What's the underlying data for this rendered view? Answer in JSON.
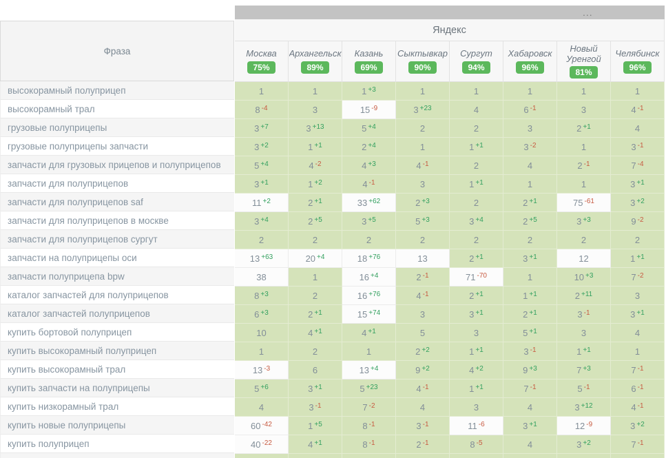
{
  "table": {
    "more_label": "...",
    "engine": "Яндекс",
    "phrase_header": "Фраза",
    "colors": {
      "badge_green": "#5cb85c",
      "cell_in_top": "#d5e3ba",
      "cell_out_of_top": "#fcfcfc",
      "diff_up": "#33a05f",
      "diff_down": "#c75a41"
    },
    "cities": [
      {
        "name": "Москва",
        "visibility": "75%"
      },
      {
        "name": "Архангельск",
        "visibility": "89%"
      },
      {
        "name": "Казань",
        "visibility": "69%"
      },
      {
        "name": "Сыктывкар",
        "visibility": "90%"
      },
      {
        "name": "Сургут",
        "visibility": "94%"
      },
      {
        "name": "Хабаровск",
        "visibility": "96%"
      },
      {
        "name": "Новый Уренгой",
        "visibility": "81%"
      },
      {
        "name": "Челябинск",
        "visibility": "96%"
      }
    ],
    "rows": [
      {
        "phrase": "высокорамный полуприцеп",
        "cells": [
          {
            "pos": 1
          },
          {
            "pos": 1
          },
          {
            "pos": 1,
            "diff": "+3"
          },
          {
            "pos": 1
          },
          {
            "pos": 1
          },
          {
            "pos": 1
          },
          {
            "pos": 1
          },
          {
            "pos": 1
          }
        ]
      },
      {
        "phrase": "высокорамный трал",
        "cells": [
          {
            "pos": 8,
            "diff": "-4"
          },
          {
            "pos": 3
          },
          {
            "pos": 15,
            "diff": "-9"
          },
          {
            "pos": 3,
            "diff": "+23"
          },
          {
            "pos": 4
          },
          {
            "pos": 6,
            "diff": "-1"
          },
          {
            "pos": 3
          },
          {
            "pos": 4,
            "diff": "-1"
          }
        ]
      },
      {
        "phrase": "грузовые полуприцепы",
        "cells": [
          {
            "pos": 3,
            "diff": "+7"
          },
          {
            "pos": 3,
            "diff": "+13"
          },
          {
            "pos": 5,
            "diff": "+4"
          },
          {
            "pos": 2
          },
          {
            "pos": 2
          },
          {
            "pos": 3
          },
          {
            "pos": 2,
            "diff": "+1"
          },
          {
            "pos": 4
          }
        ]
      },
      {
        "phrase": "грузовые полуприцепы запчасти",
        "cells": [
          {
            "pos": 3,
            "diff": "+2"
          },
          {
            "pos": 1,
            "diff": "+1"
          },
          {
            "pos": 2,
            "diff": "+4"
          },
          {
            "pos": 1
          },
          {
            "pos": 1,
            "diff": "+1"
          },
          {
            "pos": 3,
            "diff": "-2"
          },
          {
            "pos": 1
          },
          {
            "pos": 3,
            "diff": "-1"
          }
        ]
      },
      {
        "phrase": "запчасти для грузовых прицепов и полуприцепов",
        "cells": [
          {
            "pos": 5,
            "diff": "+4"
          },
          {
            "pos": 4,
            "diff": "-2"
          },
          {
            "pos": 4,
            "diff": "+3"
          },
          {
            "pos": 4,
            "diff": "-1"
          },
          {
            "pos": 2
          },
          {
            "pos": 4
          },
          {
            "pos": 2,
            "diff": "-1"
          },
          {
            "pos": 7,
            "diff": "-4"
          }
        ]
      },
      {
        "phrase": "запчасти для полуприцепов",
        "cells": [
          {
            "pos": 3,
            "diff": "+1"
          },
          {
            "pos": 1,
            "diff": "+2"
          },
          {
            "pos": 4,
            "diff": "-1"
          },
          {
            "pos": 3
          },
          {
            "pos": 1,
            "diff": "+1"
          },
          {
            "pos": 1
          },
          {
            "pos": 1
          },
          {
            "pos": 3,
            "diff": "+1"
          }
        ]
      },
      {
        "phrase": "запчасти для полуприцепов saf",
        "cells": [
          {
            "pos": 11,
            "diff": "+2"
          },
          {
            "pos": 2,
            "diff": "+1"
          },
          {
            "pos": 33,
            "diff": "+62"
          },
          {
            "pos": 2,
            "diff": "+3"
          },
          {
            "pos": 2
          },
          {
            "pos": 2,
            "diff": "+1"
          },
          {
            "pos": 75,
            "diff": "-61"
          },
          {
            "pos": 3,
            "diff": "+2"
          }
        ]
      },
      {
        "phrase": "запчасти для полуприцепов в москве",
        "cells": [
          {
            "pos": 3,
            "diff": "+4"
          },
          {
            "pos": 2,
            "diff": "+5"
          },
          {
            "pos": 3,
            "diff": "+5"
          },
          {
            "pos": 5,
            "diff": "+3"
          },
          {
            "pos": 3,
            "diff": "+4"
          },
          {
            "pos": 2,
            "diff": "+5"
          },
          {
            "pos": 3,
            "diff": "+3"
          },
          {
            "pos": 9,
            "diff": "-2"
          }
        ]
      },
      {
        "phrase": "запчасти для полуприцепов сургут",
        "cells": [
          {
            "pos": 2
          },
          {
            "pos": 2
          },
          {
            "pos": 2
          },
          {
            "pos": 2
          },
          {
            "pos": 2
          },
          {
            "pos": 2
          },
          {
            "pos": 2
          },
          {
            "pos": 2
          }
        ]
      },
      {
        "phrase": "запчасти на полуприцепы оси",
        "cells": [
          {
            "pos": 13,
            "diff": "+63"
          },
          {
            "pos": 20,
            "diff": "+4"
          },
          {
            "pos": 18,
            "diff": "+76"
          },
          {
            "pos": 13
          },
          {
            "pos": 2,
            "diff": "+1"
          },
          {
            "pos": 3,
            "diff": "+1"
          },
          {
            "pos": 12
          },
          {
            "pos": 1,
            "diff": "+1"
          }
        ]
      },
      {
        "phrase": "запчасти полуприцепа bpw",
        "cells": [
          {
            "pos": 38
          },
          {
            "pos": 1
          },
          {
            "pos": 16,
            "diff": "+4"
          },
          {
            "pos": 2,
            "diff": "-1"
          },
          {
            "pos": 71,
            "diff": "-70"
          },
          {
            "pos": 1
          },
          {
            "pos": 10,
            "diff": "+3"
          },
          {
            "pos": 7,
            "diff": "-2"
          }
        ]
      },
      {
        "phrase": "каталог запчастей для полуприцепов",
        "cells": [
          {
            "pos": 8,
            "diff": "+3"
          },
          {
            "pos": 2
          },
          {
            "pos": 16,
            "diff": "+76"
          },
          {
            "pos": 4,
            "diff": "-1"
          },
          {
            "pos": 2,
            "diff": "+1"
          },
          {
            "pos": 1,
            "diff": "+1"
          },
          {
            "pos": 2,
            "diff": "+11"
          },
          {
            "pos": 3
          }
        ]
      },
      {
        "phrase": "каталог запчастей полуприцепов",
        "cells": [
          {
            "pos": 6,
            "diff": "+3"
          },
          {
            "pos": 2,
            "diff": "+1"
          },
          {
            "pos": 15,
            "diff": "+74"
          },
          {
            "pos": 3
          },
          {
            "pos": 3,
            "diff": "+1"
          },
          {
            "pos": 2,
            "diff": "+1"
          },
          {
            "pos": 3,
            "diff": "-1"
          },
          {
            "pos": 3,
            "diff": "+1"
          }
        ]
      },
      {
        "phrase": "купить бортовой полуприцеп",
        "cells": [
          {
            "pos": 10
          },
          {
            "pos": 4,
            "diff": "+1"
          },
          {
            "pos": 4,
            "diff": "+1"
          },
          {
            "pos": 5
          },
          {
            "pos": 3
          },
          {
            "pos": 5,
            "diff": "+1"
          },
          {
            "pos": 3
          },
          {
            "pos": 4
          }
        ]
      },
      {
        "phrase": "купить высокорамный полуприцеп",
        "cells": [
          {
            "pos": 1
          },
          {
            "pos": 2
          },
          {
            "pos": 1
          },
          {
            "pos": 2,
            "diff": "+2"
          },
          {
            "pos": 1,
            "diff": "+1"
          },
          {
            "pos": 3,
            "diff": "-1"
          },
          {
            "pos": 1,
            "diff": "+1"
          },
          {
            "pos": 1
          }
        ]
      },
      {
        "phrase": "купить высокорамный трал",
        "cells": [
          {
            "pos": 13,
            "diff": "-3"
          },
          {
            "pos": 6
          },
          {
            "pos": 13,
            "diff": "+4"
          },
          {
            "pos": 9,
            "diff": "+2"
          },
          {
            "pos": 4,
            "diff": "+2"
          },
          {
            "pos": 9,
            "diff": "+3"
          },
          {
            "pos": 7,
            "diff": "+3"
          },
          {
            "pos": 7,
            "diff": "-1"
          }
        ]
      },
      {
        "phrase": "купить запчасти на полуприцепы",
        "cells": [
          {
            "pos": 5,
            "diff": "+6"
          },
          {
            "pos": 3,
            "diff": "+1"
          },
          {
            "pos": 5,
            "diff": "+23"
          },
          {
            "pos": 4,
            "diff": "-1"
          },
          {
            "pos": 1,
            "diff": "+1"
          },
          {
            "pos": 7,
            "diff": "-1"
          },
          {
            "pos": 5,
            "diff": "-1"
          },
          {
            "pos": 6,
            "diff": "-1"
          }
        ]
      },
      {
        "phrase": "купить низкорамный трал",
        "cells": [
          {
            "pos": 4
          },
          {
            "pos": 3,
            "diff": "-1"
          },
          {
            "pos": 7,
            "diff": "-2"
          },
          {
            "pos": 4
          },
          {
            "pos": 3
          },
          {
            "pos": 4
          },
          {
            "pos": 3,
            "diff": "+12"
          },
          {
            "pos": 4,
            "diff": "-1"
          }
        ]
      },
      {
        "phrase": "купить новые полуприцепы",
        "cells": [
          {
            "pos": 60,
            "diff": "-42"
          },
          {
            "pos": 1,
            "diff": "+5"
          },
          {
            "pos": 8,
            "diff": "-1"
          },
          {
            "pos": 3,
            "diff": "-1"
          },
          {
            "pos": 11,
            "diff": "-6"
          },
          {
            "pos": 3,
            "diff": "+1"
          },
          {
            "pos": 12,
            "diff": "-9"
          },
          {
            "pos": 3,
            "diff": "+2"
          }
        ]
      },
      {
        "phrase": "купить полуприцеп",
        "cells": [
          {
            "pos": 40,
            "diff": "-22"
          },
          {
            "pos": 4,
            "diff": "+1"
          },
          {
            "pos": 8,
            "diff": "-1"
          },
          {
            "pos": 2,
            "diff": "-1"
          },
          {
            "pos": 8,
            "diff": "-5"
          },
          {
            "pos": 4
          },
          {
            "pos": 3,
            "diff": "+2"
          },
          {
            "pos": 7,
            "diff": "-1"
          }
        ]
      }
    ]
  }
}
